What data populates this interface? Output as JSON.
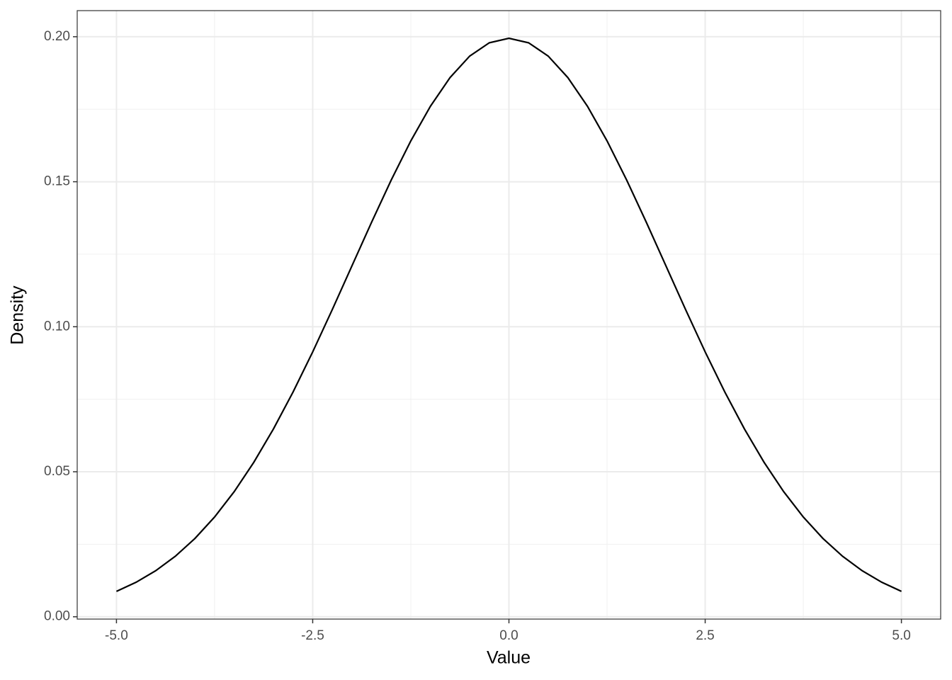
{
  "chart_data": {
    "type": "line",
    "x_label": "Value",
    "y_label": "Density",
    "x": [
      -5,
      -4.75,
      -4.5,
      -4.25,
      -4,
      -3.75,
      -3.5,
      -3.25,
      -3,
      -2.75,
      -2.5,
      -2.25,
      -2,
      -1.75,
      -1.5,
      -1.25,
      -1,
      -0.75,
      -0.5,
      -0.25,
      0,
      0.25,
      0.5,
      0.75,
      1,
      1.25,
      1.5,
      1.75,
      2,
      2.25,
      2.5,
      2.75,
      3,
      3.25,
      3.5,
      3.75,
      4,
      4.25,
      4.5,
      4.75,
      5
    ],
    "series": [
      {
        "color": "#000000",
        "values": [
          0.00876,
          0.01189,
          0.01587,
          0.02086,
          0.027,
          0.03439,
          0.04314,
          0.05327,
          0.06476,
          0.07751,
          0.09132,
          0.10594,
          0.12099,
          0.13603,
          0.15057,
          0.16408,
          0.17603,
          0.18593,
          0.19333,
          0.19792,
          0.19947,
          0.19792,
          0.19333,
          0.18593,
          0.17603,
          0.16408,
          0.15057,
          0.13603,
          0.12099,
          0.10594,
          0.09132,
          0.07751,
          0.06476,
          0.05327,
          0.04314,
          0.03439,
          0.027,
          0.02086,
          0.01587,
          0.01189,
          0.00876
        ]
      }
    ],
    "xlim": [
      -5.5,
      5.5
    ],
    "ylim": [
      -0.0008,
      0.209
    ],
    "xticks": [
      {
        "value": -5,
        "label": "-5.0"
      },
      -2.5,
      {
        "value": 0,
        "label": "0.0"
      },
      2.5,
      {
        "value": 5,
        "label": "5.0"
      }
    ],
    "yticks": [
      {
        "value": 0,
        "label": "0.00"
      },
      {
        "value": 0.05,
        "label": "0.05"
      },
      {
        "value": 0.1,
        "label": "0.10"
      },
      {
        "value": 0.15,
        "label": "0.15"
      },
      {
        "value": 0.2,
        "label": "0.20"
      }
    ],
    "xminorticks": [
      -3.75,
      -1.25,
      1.25,
      3.75
    ],
    "yminorticks": [
      0.025,
      0.075,
      0.125,
      0.175
    ],
    "grid": true
  }
}
